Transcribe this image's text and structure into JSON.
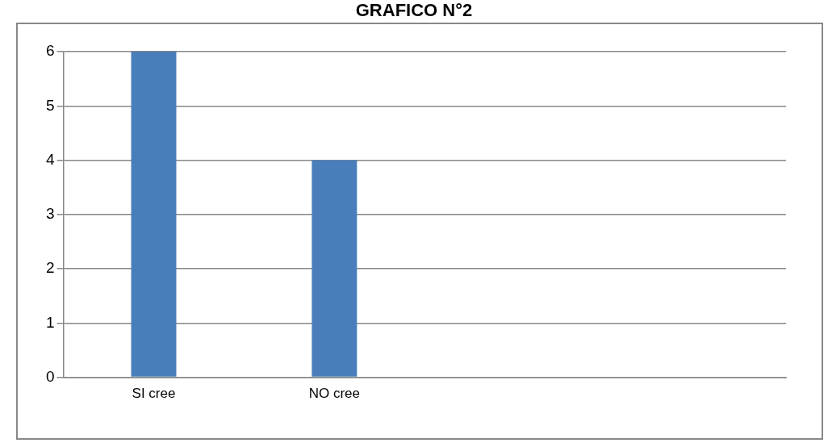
{
  "chart_data": {
    "type": "bar",
    "title": "GRAFICO N°2",
    "categories": [
      "SI cree",
      "NO cree",
      null,
      null
    ],
    "values": [
      6,
      4,
      null,
      null
    ],
    "color": "#4a7ebb",
    "ylim": [
      0,
      6
    ],
    "yticks": [
      0,
      1,
      2,
      3,
      4,
      5,
      6
    ],
    "grid": "y",
    "legend": false
  }
}
